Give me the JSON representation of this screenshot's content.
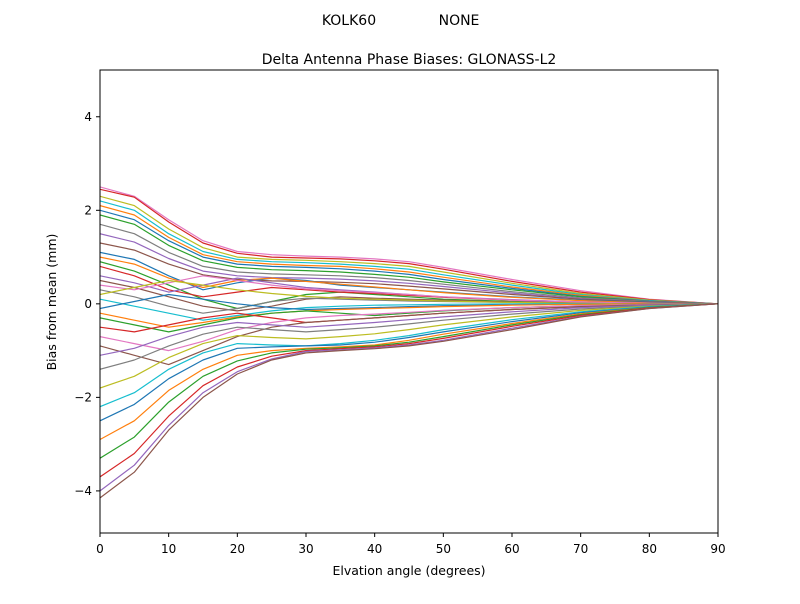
{
  "chart_data": {
    "type": "line",
    "suptitle_left": "KOLK60",
    "suptitle_right": "NONE",
    "title": "Delta Antenna Phase Biases: GLONASS-L2",
    "xlabel": "Elvation angle (degrees)",
    "ylabel": "Bias from mean (mm)",
    "xlim": [
      0,
      90
    ],
    "ylim": [
      -4.9,
      5.0
    ],
    "xticks": [
      0,
      10,
      20,
      30,
      40,
      50,
      60,
      70,
      80,
      90
    ],
    "yticks": [
      -4,
      -2,
      0,
      2,
      4
    ],
    "grid": false,
    "legend": "none",
    "x": [
      0,
      5,
      10,
      15,
      20,
      25,
      30,
      35,
      40,
      45,
      50,
      60,
      70,
      80,
      90
    ],
    "series": [
      {
        "color": "#e377c2",
        "values": [
          2.5,
          2.3,
          1.8,
          1.35,
          1.12,
          1.05,
          1.02,
          1.0,
          0.96,
          0.9,
          0.78,
          0.52,
          0.28,
          0.1,
          0.0
        ]
      },
      {
        "color": "#d62728",
        "values": [
          2.45,
          2.28,
          1.75,
          1.3,
          1.08,
          1.0,
          0.98,
          0.96,
          0.92,
          0.86,
          0.74,
          0.48,
          0.25,
          0.09,
          0.0
        ]
      },
      {
        "color": "#bcbd22",
        "values": [
          2.3,
          2.1,
          1.6,
          1.2,
          1.0,
          0.95,
          0.93,
          0.9,
          0.86,
          0.8,
          0.68,
          0.44,
          0.22,
          0.08,
          0.0
        ]
      },
      {
        "color": "#17becf",
        "values": [
          2.2,
          2.0,
          1.5,
          1.12,
          0.95,
          0.9,
          0.88,
          0.85,
          0.8,
          0.74,
          0.62,
          0.4,
          0.2,
          0.07,
          0.0
        ]
      },
      {
        "color": "#ff7f0e",
        "values": [
          2.1,
          1.9,
          1.42,
          1.05,
          0.9,
          0.85,
          0.82,
          0.8,
          0.75,
          0.68,
          0.57,
          0.36,
          0.18,
          0.06,
          0.0
        ]
      },
      {
        "color": "#1f77b4",
        "values": [
          2.0,
          1.8,
          1.35,
          1.0,
          0.85,
          0.8,
          0.78,
          0.75,
          0.7,
          0.63,
          0.52,
          0.33,
          0.16,
          0.06,
          0.0
        ]
      },
      {
        "color": "#2ca02c",
        "values": [
          1.9,
          1.7,
          1.25,
          0.92,
          0.78,
          0.73,
          0.71,
          0.68,
          0.63,
          0.57,
          0.47,
          0.3,
          0.15,
          0.05,
          0.0
        ]
      },
      {
        "color": "#7f7f7f",
        "values": [
          1.7,
          1.5,
          1.1,
          0.8,
          0.68,
          0.64,
          0.62,
          0.6,
          0.56,
          0.5,
          0.42,
          0.26,
          0.13,
          0.05,
          0.0
        ]
      },
      {
        "color": "#9467bd",
        "values": [
          1.5,
          1.32,
          0.97,
          0.7,
          0.6,
          0.56,
          0.55,
          0.53,
          0.49,
          0.44,
          0.37,
          0.23,
          0.11,
          0.04,
          0.0
        ]
      },
      {
        "color": "#8c564b",
        "values": [
          1.3,
          1.15,
          0.85,
          0.62,
          0.52,
          0.49,
          0.48,
          0.46,
          0.43,
          0.38,
          0.32,
          0.2,
          0.1,
          0.04,
          0.0
        ]
      },
      {
        "color": "#1f77b4",
        "values": [
          1.1,
          0.95,
          0.6,
          0.3,
          0.45,
          0.55,
          0.5,
          0.4,
          0.35,
          0.3,
          0.25,
          0.15,
          0.08,
          0.03,
          0.0
        ]
      },
      {
        "color": "#ff7f0e",
        "values": [
          1.0,
          0.85,
          0.55,
          0.35,
          0.5,
          0.55,
          0.48,
          0.42,
          0.36,
          0.3,
          0.24,
          0.14,
          0.07,
          0.02,
          0.0
        ]
      },
      {
        "color": "#2ca02c",
        "values": [
          0.9,
          0.7,
          0.4,
          0.1,
          -0.1,
          0.05,
          0.2,
          0.25,
          0.2,
          0.15,
          0.1,
          0.05,
          0.02,
          0.01,
          0.0
        ]
      },
      {
        "color": "#d62728",
        "values": [
          0.8,
          0.6,
          0.3,
          0.15,
          0.25,
          0.35,
          0.3,
          0.25,
          0.22,
          0.18,
          0.14,
          0.08,
          0.04,
          0.01,
          0.0
        ]
      },
      {
        "color": "#9467bd",
        "values": [
          0.6,
          0.45,
          0.25,
          0.4,
          0.55,
          0.45,
          0.35,
          0.3,
          0.25,
          0.2,
          0.15,
          0.09,
          0.04,
          0.01,
          0.0
        ]
      },
      {
        "color": "#8c564b",
        "values": [
          0.5,
          0.35,
          0.15,
          -0.05,
          -0.15,
          -0.05,
          0.1,
          0.15,
          0.12,
          0.1,
          0.08,
          0.04,
          0.02,
          0.01,
          0.0
        ]
      },
      {
        "color": "#e377c2",
        "values": [
          0.4,
          0.3,
          0.45,
          0.6,
          0.5,
          0.4,
          0.32,
          0.28,
          0.24,
          0.2,
          0.15,
          0.08,
          0.04,
          0.01,
          0.0
        ]
      },
      {
        "color": "#7f7f7f",
        "values": [
          0.3,
          0.15,
          -0.05,
          -0.2,
          -0.1,
          0.05,
          0.12,
          0.1,
          0.08,
          0.06,
          0.05,
          0.03,
          0.01,
          0.0,
          0.0
        ]
      },
      {
        "color": "#bcbd22",
        "values": [
          0.2,
          0.35,
          0.5,
          0.4,
          0.3,
          0.22,
          0.16,
          0.12,
          0.1,
          0.08,
          0.06,
          0.03,
          0.01,
          0.0,
          0.0
        ]
      },
      {
        "color": "#17becf",
        "values": [
          0.1,
          -0.05,
          -0.2,
          -0.35,
          -0.25,
          -0.15,
          -0.08,
          -0.05,
          -0.03,
          -0.02,
          -0.01,
          0.0,
          0.0,
          0.0,
          0.0
        ]
      },
      {
        "color": "#1f77b4",
        "values": [
          -0.1,
          0.05,
          0.2,
          0.1,
          0.0,
          -0.08,
          -0.12,
          -0.1,
          -0.08,
          -0.06,
          -0.04,
          -0.02,
          -0.01,
          0.0,
          0.0
        ]
      },
      {
        "color": "#ff7f0e",
        "values": [
          -0.2,
          -0.35,
          -0.5,
          -0.4,
          -0.28,
          -0.2,
          -0.15,
          -0.12,
          -0.1,
          -0.08,
          -0.06,
          -0.03,
          -0.01,
          0.0,
          0.0
        ]
      },
      {
        "color": "#2ca02c",
        "values": [
          -0.3,
          -0.45,
          -0.6,
          -0.45,
          -0.3,
          -0.2,
          -0.15,
          -0.2,
          -0.25,
          -0.2,
          -0.15,
          -0.08,
          -0.04,
          -0.01,
          0.0
        ]
      },
      {
        "color": "#d62728",
        "values": [
          -0.5,
          -0.6,
          -0.45,
          -0.3,
          -0.2,
          -0.3,
          -0.4,
          -0.35,
          -0.3,
          -0.25,
          -0.2,
          -0.12,
          -0.06,
          -0.02,
          0.0
        ]
      },
      {
        "color": "#e377c2",
        "values": [
          -0.7,
          -0.85,
          -1.0,
          -0.8,
          -0.55,
          -0.4,
          -0.3,
          -0.25,
          -0.22,
          -0.18,
          -0.14,
          -0.08,
          -0.04,
          -0.01,
          0.0
        ]
      },
      {
        "color": "#8c564b",
        "values": [
          -0.9,
          -1.1,
          -1.3,
          -1.0,
          -0.7,
          -0.5,
          -0.4,
          -0.35,
          -0.3,
          -0.25,
          -0.2,
          -0.12,
          -0.06,
          -0.02,
          0.0
        ]
      },
      {
        "color": "#9467bd",
        "values": [
          -1.1,
          -0.95,
          -0.7,
          -0.5,
          -0.4,
          -0.45,
          -0.5,
          -0.45,
          -0.4,
          -0.34,
          -0.28,
          -0.17,
          -0.08,
          -0.03,
          0.0
        ]
      },
      {
        "color": "#7f7f7f",
        "values": [
          -1.4,
          -1.2,
          -0.9,
          -0.65,
          -0.5,
          -0.55,
          -0.6,
          -0.55,
          -0.5,
          -0.43,
          -0.35,
          -0.22,
          -0.11,
          -0.04,
          0.0
        ]
      },
      {
        "color": "#bcbd22",
        "values": [
          -1.8,
          -1.55,
          -1.15,
          -0.85,
          -0.68,
          -0.72,
          -0.75,
          -0.7,
          -0.64,
          -0.55,
          -0.45,
          -0.28,
          -0.14,
          -0.05,
          0.0
        ]
      },
      {
        "color": "#17becf",
        "values": [
          -2.2,
          -1.9,
          -1.4,
          -1.05,
          -0.85,
          -0.88,
          -0.9,
          -0.85,
          -0.78,
          -0.68,
          -0.55,
          -0.34,
          -0.17,
          -0.06,
          0.0
        ]
      },
      {
        "color": "#1f77b4",
        "values": [
          -2.5,
          -2.15,
          -1.6,
          -1.2,
          -0.95,
          -0.92,
          -0.9,
          -0.88,
          -0.82,
          -0.72,
          -0.6,
          -0.38,
          -0.19,
          -0.07,
          0.0
        ]
      },
      {
        "color": "#ff7f0e",
        "values": [
          -2.9,
          -2.5,
          -1.85,
          -1.4,
          -1.1,
          -1.0,
          -0.95,
          -0.92,
          -0.88,
          -0.78,
          -0.65,
          -0.42,
          -0.21,
          -0.08,
          0.0
        ]
      },
      {
        "color": "#2ca02c",
        "values": [
          -3.3,
          -2.85,
          -2.1,
          -1.55,
          -1.22,
          -1.05,
          -0.97,
          -0.94,
          -0.9,
          -0.82,
          -0.7,
          -0.45,
          -0.23,
          -0.08,
          0.0
        ]
      },
      {
        "color": "#d62728",
        "values": [
          -3.7,
          -3.2,
          -2.4,
          -1.75,
          -1.35,
          -1.12,
          -1.0,
          -0.96,
          -0.92,
          -0.85,
          -0.74,
          -0.48,
          -0.25,
          -0.09,
          0.0
        ]
      },
      {
        "color": "#9467bd",
        "values": [
          -4.0,
          -3.45,
          -2.6,
          -1.9,
          -1.45,
          -1.18,
          -1.02,
          -0.98,
          -0.94,
          -0.88,
          -0.78,
          -0.52,
          -0.27,
          -0.1,
          0.0
        ]
      },
      {
        "color": "#8c564b",
        "values": [
          -4.15,
          -3.6,
          -2.7,
          -2.0,
          -1.5,
          -1.2,
          -1.05,
          -1.0,
          -0.96,
          -0.9,
          -0.8,
          -0.55,
          -0.28,
          -0.1,
          0.0
        ]
      }
    ]
  }
}
